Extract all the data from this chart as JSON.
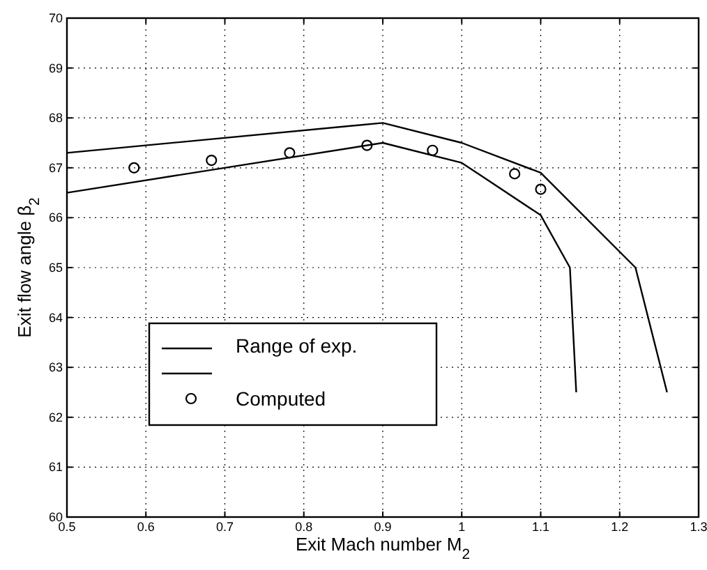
{
  "chart_data": {
    "type": "line",
    "xlabel": "Exit Mach number M$_{2}$",
    "ylabel": "Exit flow angle β$_{2}$",
    "xlim": [
      0.5,
      1.3
    ],
    "xticks": [
      0.5,
      0.6,
      0.7,
      0.8,
      0.9,
      1,
      1.1,
      1.2,
      1.3
    ],
    "ylim": [
      60,
      70
    ],
    "yticks": [
      60,
      61,
      62,
      63,
      64,
      65,
      66,
      67,
      68,
      69,
      70
    ],
    "grid": true,
    "legend": "left",
    "series": [
      {
        "name": "Range of exp.",
        "color": "#000000",
        "marker": "none",
        "line_style": "solid",
        "x": [
          0.5,
          0.9,
          1.0,
          1.1,
          1.22,
          1.26
        ],
        "values": [
          67.3,
          67.9,
          67.5,
          66.9,
          65.0,
          62.5
        ]
      },
      {
        "color": "#000000",
        "marker": "none",
        "line_style": "solid",
        "x": [
          0.5,
          0.9,
          1.0,
          1.1,
          1.137,
          1.145
        ],
        "values": [
          66.5,
          67.5,
          67.1,
          66.05,
          65.0,
          62.5
        ]
      },
      {
        "name": "Computed",
        "type": "scatter",
        "color": "#000000",
        "marker": "circle",
        "x": [
          0.585,
          0.683,
          0.782,
          0.88,
          0.963,
          1.067,
          1.1
        ],
        "values": [
          67.0,
          67.15,
          67.3,
          67.45,
          67.35,
          66.88,
          66.57
        ]
      }
    ]
  }
}
